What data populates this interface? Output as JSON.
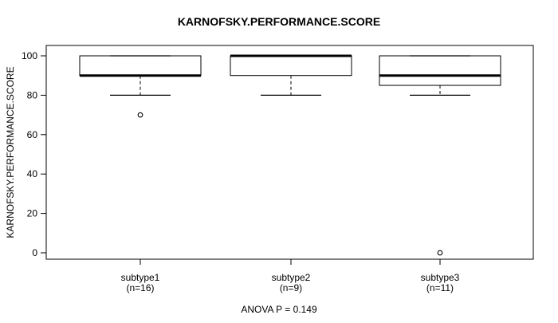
{
  "title": "KARNOFSKY.PERFORMANCE.SCORE",
  "footer": "ANOVA P = 0.149",
  "chart_data": {
    "type": "boxplot",
    "title": "KARNOFSKY.PERFORMANCE.SCORE",
    "xlabel": "",
    "ylabel": "KARNOFSKY.PERFORMANCE.SCORE",
    "annotation": "ANOVA P = 0.149",
    "ylim": [
      0,
      100
    ],
    "yticks": [
      0,
      20,
      40,
      60,
      80,
      100
    ],
    "grid": false,
    "legend": "none",
    "colors": {
      "line": "#000000",
      "box_fill": "#ffffff",
      "background": "#ffffff"
    },
    "groups": [
      {
        "label": "subtype1",
        "sublabel": "(n=16)",
        "n": 16,
        "q1": 90,
        "median": 90,
        "q3": 100,
        "whisker_low": 80,
        "whisker_high": 100,
        "outliers": [
          70
        ]
      },
      {
        "label": "subtype2",
        "sublabel": "(n=9)",
        "n": 9,
        "q1": 90,
        "median": 100,
        "q3": 100,
        "whisker_low": 80,
        "whisker_high": 100,
        "outliers": []
      },
      {
        "label": "subtype3",
        "sublabel": "(n=11)",
        "n": 11,
        "q1": 85,
        "median": 90,
        "q3": 100,
        "whisker_low": 80,
        "whisker_high": 100,
        "outliers": [
          0
        ]
      }
    ]
  }
}
